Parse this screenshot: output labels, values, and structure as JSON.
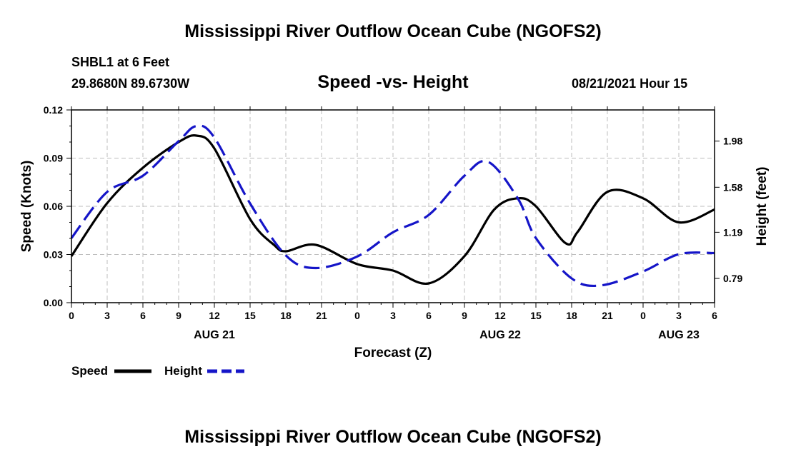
{
  "header": {
    "main_title": "Mississippi River Outflow Ocean Cube (NGOFS2)",
    "station": "SHBL1 at 6 Feet",
    "coords": "29.8680N  89.6730W",
    "subtitle": "Speed -vs- Height",
    "datetime": "08/21/2021 Hour 15"
  },
  "footer": {
    "title": "Mississippi River Outflow Ocean Cube (NGOFS2)"
  },
  "legend": {
    "speed_label": "Speed",
    "height_label": "Height"
  },
  "colors": {
    "speed": "#000000",
    "height": "#1515c8",
    "grid": "#bdbdbd"
  },
  "chart_data": {
    "type": "line",
    "title": "Speed -vs- Height",
    "xlabel": "Forecast (Z)",
    "ylabel": "Speed (Knots)",
    "y2label": "Height (feet)",
    "xlim": [
      0,
      54
    ],
    "ylim": [
      0,
      0.12
    ],
    "y2lim": [
      0.58,
      2.25
    ],
    "x_ticks": [
      0,
      3,
      6,
      9,
      12,
      15,
      18,
      21,
      24,
      27,
      30,
      33,
      36,
      39,
      42,
      45,
      48,
      51,
      54
    ],
    "x_tick_labels": [
      "0",
      "3",
      "6",
      "9",
      "12",
      "15",
      "18",
      "21",
      "0",
      "3",
      "6",
      "9",
      "12",
      "15",
      "18",
      "21",
      "0",
      "3",
      "6"
    ],
    "day_labels": [
      {
        "x": 12,
        "text": "AUG 21"
      },
      {
        "x": 36,
        "text": "AUG 22"
      },
      {
        "x": 51,
        "text": "AUG 23"
      }
    ],
    "y_ticks": [
      0,
      0.03,
      0.06,
      0.09,
      0.12
    ],
    "y_tick_labels": [
      "0.00",
      "0.03",
      "0.06",
      "0.09",
      "0.12"
    ],
    "y2_ticks": [
      0.79,
      1.19,
      1.58,
      1.98
    ],
    "y2_tick_labels": [
      "0.79",
      "1.19",
      "1.58",
      "1.98"
    ],
    "series": [
      {
        "name": "Speed",
        "axis": "left",
        "style": "solid",
        "x": [
          0,
          3,
          6,
          9,
          10.5,
          12,
          15,
          17,
          18,
          20.5,
          24,
          27,
          30,
          33,
          35.5,
          37.5,
          39,
          41.5,
          42.5,
          45,
          48,
          51,
          54
        ],
        "y": [
          0.029,
          0.062,
          0.084,
          0.1,
          0.104,
          0.096,
          0.052,
          0.036,
          0.032,
          0.036,
          0.024,
          0.02,
          0.012,
          0.029,
          0.058,
          0.065,
          0.06,
          0.037,
          0.044,
          0.069,
          0.065,
          0.05,
          0.058
        ]
      },
      {
        "name": "Height",
        "axis": "right",
        "style": "dashed",
        "x": [
          0,
          3,
          6,
          9,
          10.5,
          12,
          15,
          18,
          20.5,
          24,
          27,
          30,
          33,
          35,
          37.5,
          39,
          42,
          44.5,
          48,
          51,
          54
        ],
        "y": [
          1.14,
          1.54,
          1.68,
          1.98,
          2.11,
          2.01,
          1.44,
          0.99,
          0.88,
          0.98,
          1.19,
          1.34,
          1.68,
          1.8,
          1.48,
          1.14,
          0.79,
          0.73,
          0.85,
          1.0,
          1.01
        ]
      }
    ]
  }
}
